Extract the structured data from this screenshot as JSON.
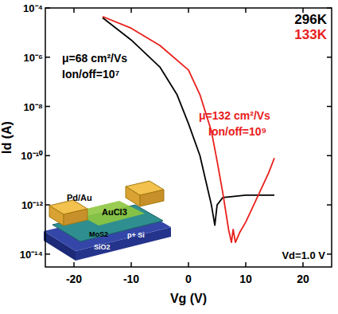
{
  "chart_data": {
    "type": "line",
    "log": "y",
    "x_label": "Vg (V)",
    "y_label": "Id (A)",
    "xlim": [
      -25,
      25
    ],
    "xticks": [
      -20,
      -10,
      0,
      10,
      20
    ],
    "ylim": [
      3e-15,
      0.0001
    ],
    "yticks": [
      {
        "value": 0.0001,
        "label": "10⁻⁴"
      },
      {
        "value": 1e-06,
        "label": "10⁻⁶"
      },
      {
        "value": 1e-08,
        "label": "10⁻⁸"
      },
      {
        "value": 1e-10,
        "label": "10⁻¹⁰"
      },
      {
        "value": 1e-12,
        "label": "10⁻¹²"
      },
      {
        "value": 1e-14,
        "label": "10⁻¹⁴"
      }
    ],
    "legend": "upper right",
    "series": [
      {
        "name": "296K",
        "color": "#000000",
        "labels": [
          "μ=68 cm²/Vs",
          "Ion/off=10⁷"
        ],
        "x": [
          -15,
          -10,
          -5,
          -2,
          0,
          2,
          3,
          4,
          4.6,
          5,
          6,
          10,
          15
        ],
        "values": [
          4e-05,
          5e-06,
          4e-07,
          3e-08,
          2e-09,
          1e-10,
          1e-11,
          1e-12,
          1.5e-13,
          1e-12,
          2e-12,
          2.5e-12,
          2.5e-12
        ]
      },
      {
        "name": "133K",
        "color": "#e8201c",
        "labels": [
          "μ=132 cm²/Vs",
          "Ion/off=10⁹"
        ],
        "x": [
          -15,
          -10,
          -5,
          0,
          2,
          4,
          5,
          6,
          7,
          7.5,
          7.8,
          8.2,
          9,
          10,
          12,
          14,
          15
        ],
        "values": [
          4.5e-05,
          1.5e-05,
          3e-06,
          3e-07,
          3e-08,
          1e-09,
          6e-11,
          3e-12,
          1e-13,
          3e-14,
          1e-13,
          3e-14,
          8e-14,
          2e-13,
          2e-12,
          2e-11,
          8e-11
        ]
      }
    ],
    "annotations": [
      "Vd=1.0 V"
    ],
    "inset_labels": [
      "Pd/Au",
      "AuCl3",
      "MoS2",
      "SiO2",
      "p+ Si"
    ]
  }
}
